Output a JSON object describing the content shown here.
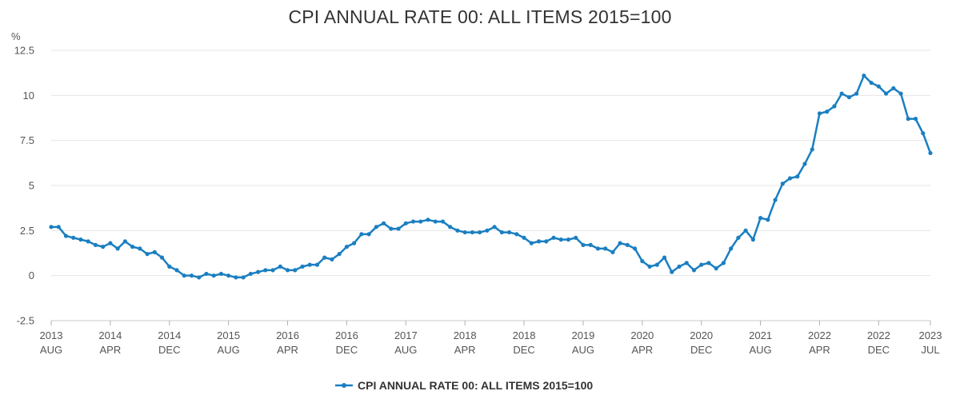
{
  "chart_data": {
    "type": "line",
    "title": "CPI ANNUAL RATE 00: ALL ITEMS 2015=100",
    "unit_label": "%",
    "ylim": [
      -2.5,
      12.5
    ],
    "yticks": [
      -2.5,
      0,
      2.5,
      5,
      7.5,
      10,
      12.5
    ],
    "ytick_labels": [
      "-2.5",
      "0",
      "2.5",
      "5",
      "7.5",
      "10",
      "12.5"
    ],
    "grid": true,
    "legend_position": "bottom-center",
    "color": "#1a7fc1",
    "xticks": [
      {
        "index": 0,
        "year": "2013",
        "month": "AUG"
      },
      {
        "index": 8,
        "year": "2014",
        "month": "APR"
      },
      {
        "index": 16,
        "year": "2014",
        "month": "DEC"
      },
      {
        "index": 24,
        "year": "2015",
        "month": "AUG"
      },
      {
        "index": 32,
        "year": "2016",
        "month": "APR"
      },
      {
        "index": 40,
        "year": "2016",
        "month": "DEC"
      },
      {
        "index": 48,
        "year": "2017",
        "month": "AUG"
      },
      {
        "index": 56,
        "year": "2018",
        "month": "APR"
      },
      {
        "index": 64,
        "year": "2018",
        "month": "DEC"
      },
      {
        "index": 72,
        "year": "2019",
        "month": "AUG"
      },
      {
        "index": 80,
        "year": "2020",
        "month": "APR"
      },
      {
        "index": 88,
        "year": "2020",
        "month": "DEC"
      },
      {
        "index": 96,
        "year": "2021",
        "month": "AUG"
      },
      {
        "index": 104,
        "year": "2022",
        "month": "APR"
      },
      {
        "index": 112,
        "year": "2022",
        "month": "DEC"
      },
      {
        "index": 119,
        "year": "2023",
        "month": "JUL"
      }
    ],
    "series": [
      {
        "name": "CPI ANNUAL RATE 00: ALL ITEMS 2015=100",
        "start": "2013-08",
        "values": [
          2.7,
          2.7,
          2.2,
          2.1,
          2.0,
          1.9,
          1.7,
          1.6,
          1.8,
          1.5,
          1.9,
          1.6,
          1.5,
          1.2,
          1.3,
          1.0,
          0.5,
          0.3,
          0.0,
          0.0,
          -0.1,
          0.1,
          0.0,
          0.1,
          0.0,
          -0.1,
          -0.1,
          0.1,
          0.2,
          0.3,
          0.3,
          0.5,
          0.3,
          0.3,
          0.5,
          0.6,
          0.6,
          1.0,
          0.9,
          1.2,
          1.6,
          1.8,
          2.3,
          2.3,
          2.7,
          2.9,
          2.6,
          2.6,
          2.9,
          3.0,
          3.0,
          3.1,
          3.0,
          3.0,
          2.7,
          2.5,
          2.4,
          2.4,
          2.4,
          2.5,
          2.7,
          2.4,
          2.4,
          2.3,
          2.1,
          1.8,
          1.9,
          1.9,
          2.1,
          2.0,
          2.0,
          2.1,
          1.7,
          1.7,
          1.5,
          1.5,
          1.3,
          1.8,
          1.7,
          1.5,
          0.8,
          0.5,
          0.6,
          1.0,
          0.2,
          0.5,
          0.7,
          0.3,
          0.6,
          0.7,
          0.4,
          0.7,
          1.5,
          2.1,
          2.5,
          2.0,
          3.2,
          3.1,
          4.2,
          5.1,
          5.4,
          5.5,
          6.2,
          7.0,
          9.0,
          9.1,
          9.4,
          10.1,
          9.9,
          10.1,
          11.1,
          10.7,
          10.5,
          10.1,
          10.4,
          10.1,
          8.7,
          8.7,
          7.9,
          6.8
        ]
      }
    ]
  }
}
